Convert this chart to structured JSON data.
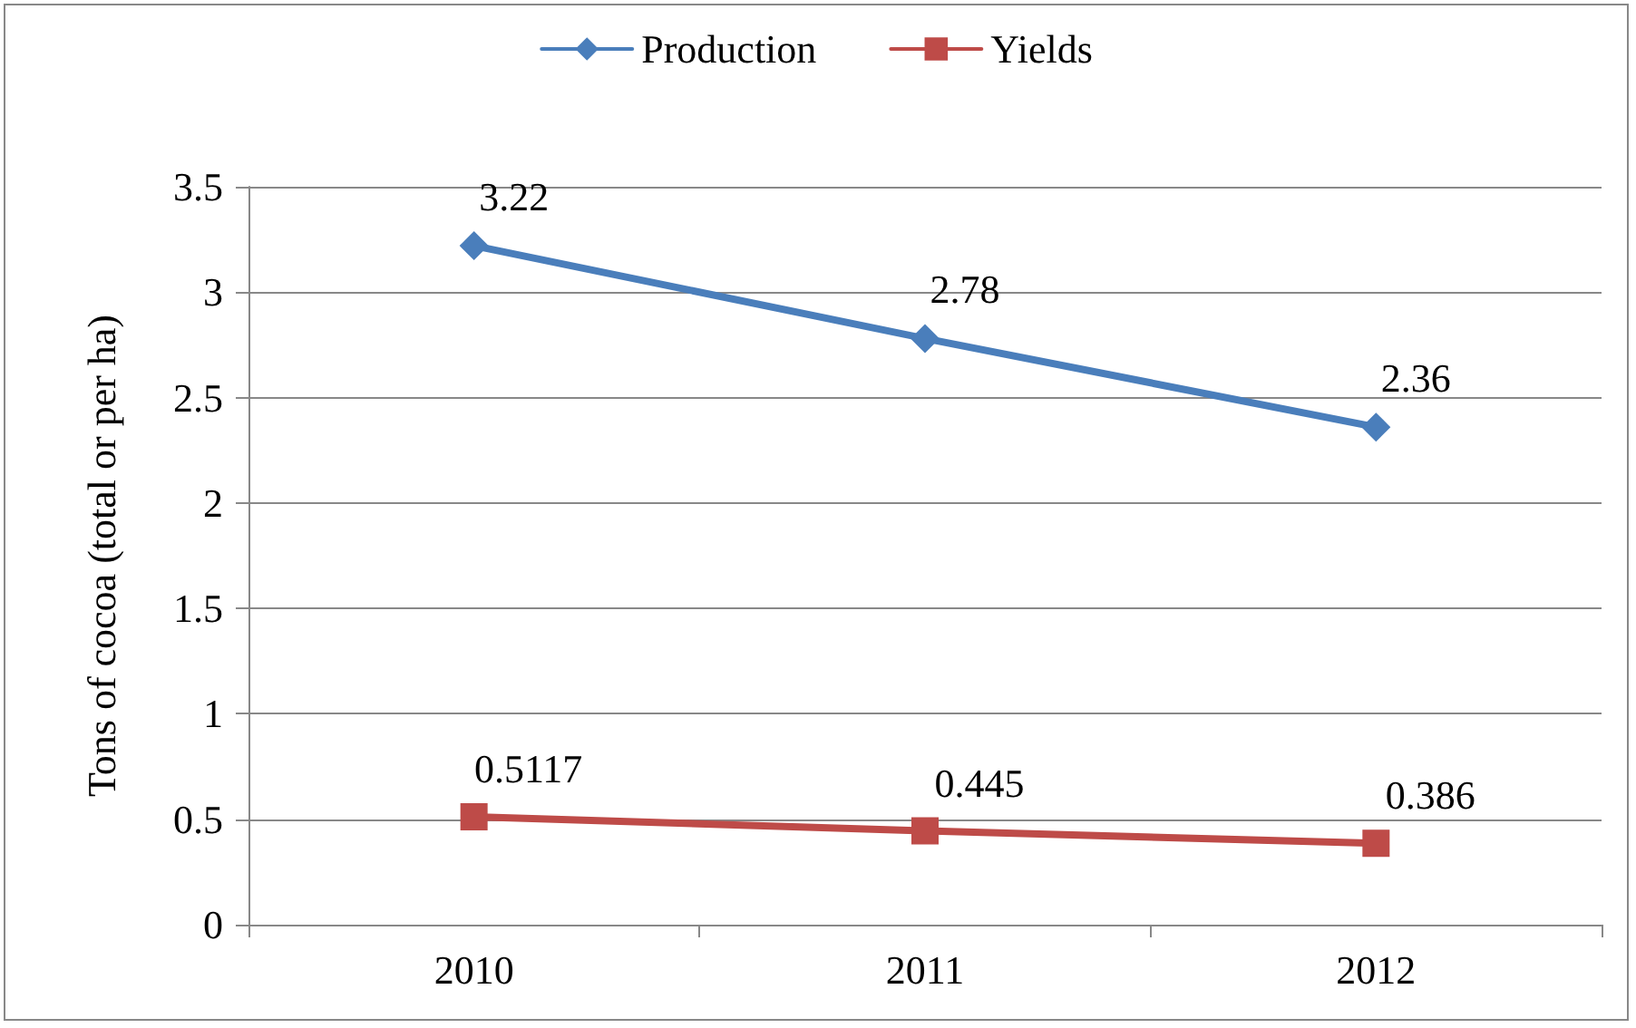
{
  "chart_data": {
    "type": "line",
    "ylabel": "Tons of cocoa (total or per ha)",
    "categories": [
      "2010",
      "2011",
      "2012"
    ],
    "series": [
      {
        "name": "Production",
        "color": "#4a7ebb",
        "marker": "diamond",
        "values": [
          3.22,
          2.78,
          2.36
        ]
      },
      {
        "name": "Yields",
        "color": "#be4b48",
        "marker": "square",
        "values": [
          0.5117,
          0.445,
          0.386
        ]
      }
    ],
    "ylim": [
      0,
      3.5
    ],
    "yticks": [
      0,
      0.5,
      1,
      1.5,
      2,
      2.5,
      3,
      3.5
    ],
    "grid": "y",
    "legend": "top",
    "data_labels": true,
    "line_style": "solid"
  }
}
